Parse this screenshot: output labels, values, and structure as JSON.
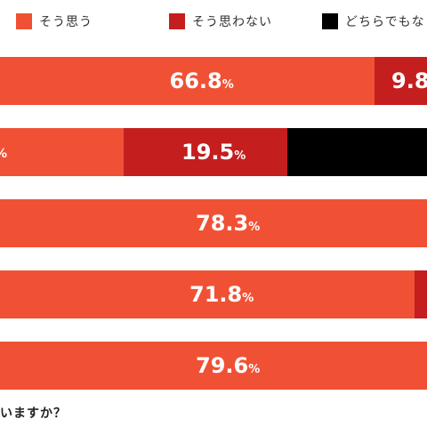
{
  "legend": [
    {
      "label": "そう思う",
      "color": "#f05135"
    },
    {
      "label": "そう思わない",
      "color": "#c41e1e"
    },
    {
      "label": "どちらでもな",
      "color": "#000000"
    }
  ],
  "question": "いますか？",
  "chart_data": {
    "type": "bar",
    "orientation": "horizontal",
    "stacked": true,
    "unit": "%",
    "categories": [
      "",
      "",
      "",
      "",
      ""
    ],
    "series": [
      {
        "name": "そう思う",
        "color": "#f05135",
        "values": [
          66.8,
          null,
          78.3,
          71.8,
          79.6
        ]
      },
      {
        "name": "そう思わない",
        "color": "#c41e1e",
        "values": [
          9.8,
          19.5,
          null,
          null,
          null
        ]
      },
      {
        "name": "どちらでもな",
        "color": "#000000",
        "values": [
          null,
          null,
          null,
          null,
          null
        ]
      }
    ],
    "visible_labels": [
      [
        "66.8",
        "9.8"
      ],
      [
        "%",
        "19.5"
      ],
      [
        "78.3"
      ],
      [
        "71.8"
      ],
      [
        "79.6"
      ]
    ]
  }
}
